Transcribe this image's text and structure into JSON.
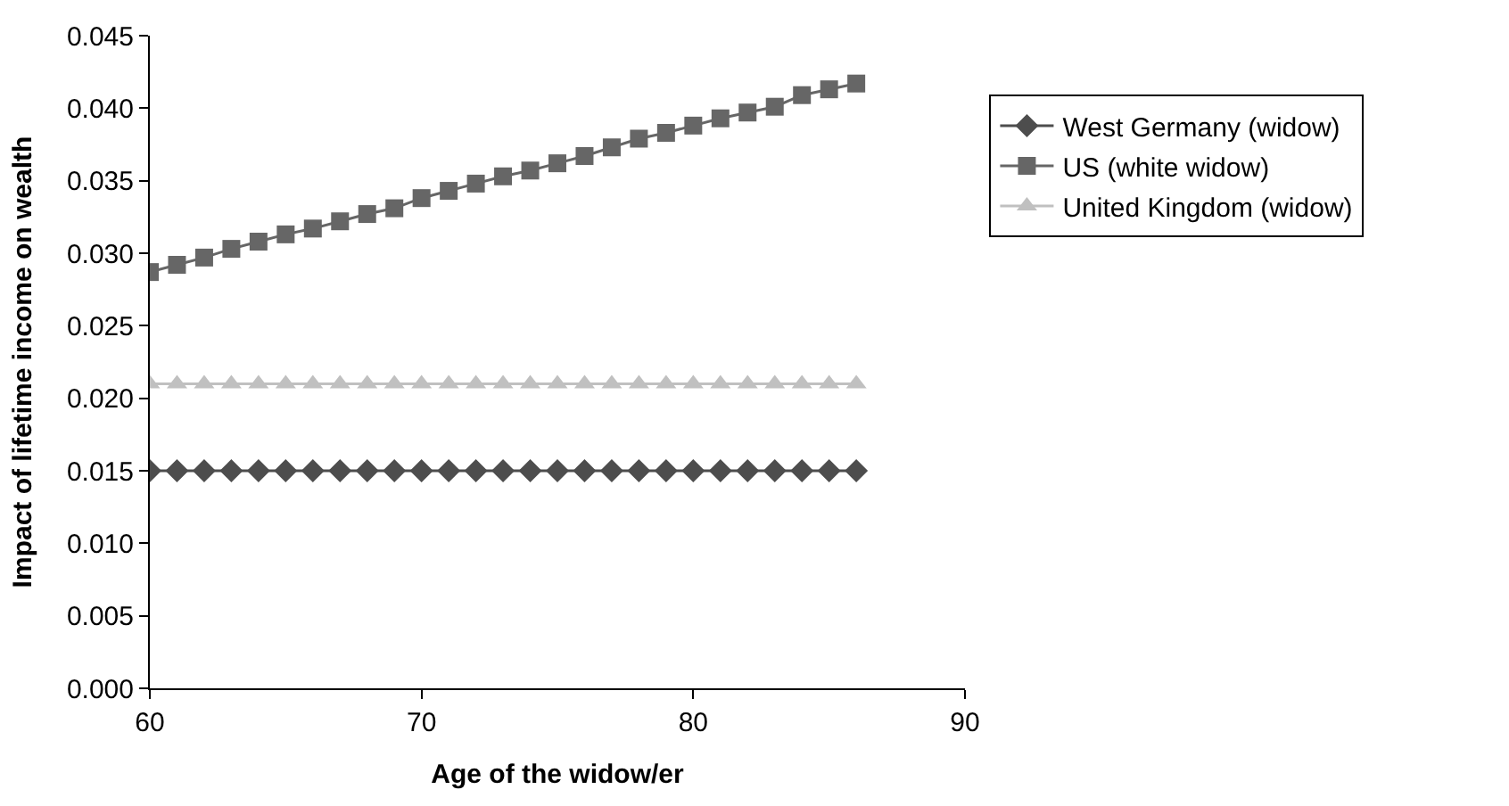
{
  "chart_data": {
    "type": "line",
    "xlabel": "Age of the widow/er",
    "ylabel": "Impact of lifetime income on wealth",
    "x": [
      60,
      61,
      62,
      63,
      64,
      65,
      66,
      67,
      68,
      69,
      70,
      71,
      72,
      73,
      74,
      75,
      76,
      77,
      78,
      79,
      80,
      81,
      82,
      83,
      84,
      85,
      86
    ],
    "series": [
      {
        "name": "West Germany (widow)",
        "color": "#4d4d4d",
        "marker": "diamond",
        "values": [
          0.015,
          0.015,
          0.015,
          0.015,
          0.015,
          0.015,
          0.015,
          0.015,
          0.015,
          0.015,
          0.015,
          0.015,
          0.015,
          0.015,
          0.015,
          0.015,
          0.015,
          0.015,
          0.015,
          0.015,
          0.015,
          0.015,
          0.015,
          0.015,
          0.015,
          0.015,
          0.015
        ]
      },
      {
        "name": "US (white widow)",
        "color": "#666666",
        "marker": "square",
        "values": [
          0.0287,
          0.0292,
          0.0297,
          0.0303,
          0.0308,
          0.0313,
          0.0317,
          0.0322,
          0.0327,
          0.0331,
          0.0338,
          0.0343,
          0.0348,
          0.0353,
          0.0357,
          0.0362,
          0.0367,
          0.0373,
          0.0379,
          0.0383,
          0.0388,
          0.0393,
          0.0397,
          0.0401,
          0.0409,
          0.0413,
          0.0417
        ]
      },
      {
        "name": "United Kingdom (widow)",
        "color": "#c0c0c0",
        "marker": "triangle",
        "values": [
          0.021,
          0.021,
          0.021,
          0.021,
          0.021,
          0.021,
          0.021,
          0.021,
          0.021,
          0.021,
          0.021,
          0.021,
          0.021,
          0.021,
          0.021,
          0.021,
          0.021,
          0.021,
          0.021,
          0.021,
          0.021,
          0.021,
          0.021,
          0.021,
          0.021,
          0.021,
          0.021
        ]
      }
    ],
    "xlim": [
      60,
      90
    ],
    "xticks": [
      60,
      70,
      80,
      90
    ],
    "ylim": [
      0,
      0.045
    ],
    "yticks": [
      {
        "value": 0,
        "label": "0.000"
      },
      {
        "value": 0.005,
        "label": "0.005"
      },
      {
        "value": 0.01,
        "label": "0.010"
      },
      {
        "value": 0.015,
        "label": "0.015"
      },
      {
        "value": 0.02,
        "label": "0.020"
      },
      {
        "value": 0.025,
        "label": "0.025"
      },
      {
        "value": 0.03,
        "label": "0.030"
      },
      {
        "value": 0.035,
        "label": "0.035"
      },
      {
        "value": 0.04,
        "label": "0.040"
      },
      {
        "value": 0.045,
        "label": "0.045"
      }
    ],
    "legend": "right",
    "line_style": "solid"
  }
}
